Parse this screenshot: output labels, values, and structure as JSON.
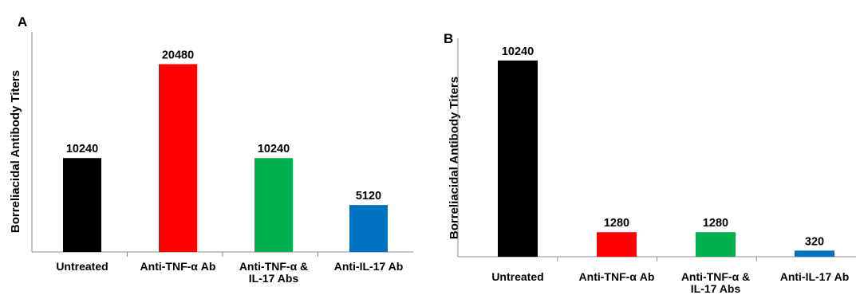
{
  "chart_data": [
    {
      "type": "bar",
      "panel": "A",
      "ylabel": "Borreliacidal  Antibody  Titers",
      "categories": [
        "Untreated",
        "Anti-TNF-α Ab",
        "Anti-TNF-α & IL-17 Abs",
        "Anti-IL-17 Ab"
      ],
      "category_lines": [
        [
          "Untreated"
        ],
        [
          "Anti-TNF-α Ab"
        ],
        [
          "Anti-TNF-α &",
          "IL-17 Abs"
        ],
        [
          "Anti-IL-17 Ab"
        ]
      ],
      "values": [
        10240,
        20480,
        10240,
        5120
      ],
      "value_labels": [
        "10240",
        "20480",
        "10240",
        "5120"
      ],
      "colors": [
        "#000000",
        "#ff0000",
        "#00b050",
        "#0070c0"
      ],
      "ylim": [
        0,
        24000
      ],
      "grid": false,
      "legend": "none"
    },
    {
      "type": "bar",
      "panel": "B",
      "ylabel": "Borreliacidal  Antibody  Titers",
      "categories": [
        "Untreated",
        "Anti-TNF-α Ab",
        "Anti-TNF-α & IL-17 Abs",
        "Anti-IL-17 Ab"
      ],
      "category_lines": [
        [
          "Untreated"
        ],
        [
          "Anti-TNF-α Ab"
        ],
        [
          "Anti-TNF-α &",
          "IL-17 Abs"
        ],
        [
          "Anti-IL-17 Ab"
        ]
      ],
      "values": [
        10240,
        1280,
        1280,
        320
      ],
      "value_labels": [
        "10240",
        "1280",
        "1280",
        "320"
      ],
      "colors": [
        "#000000",
        "#ff0000",
        "#00b050",
        "#0070c0"
      ],
      "ylim": [
        0,
        11400
      ],
      "grid": false,
      "legend": "none"
    }
  ]
}
